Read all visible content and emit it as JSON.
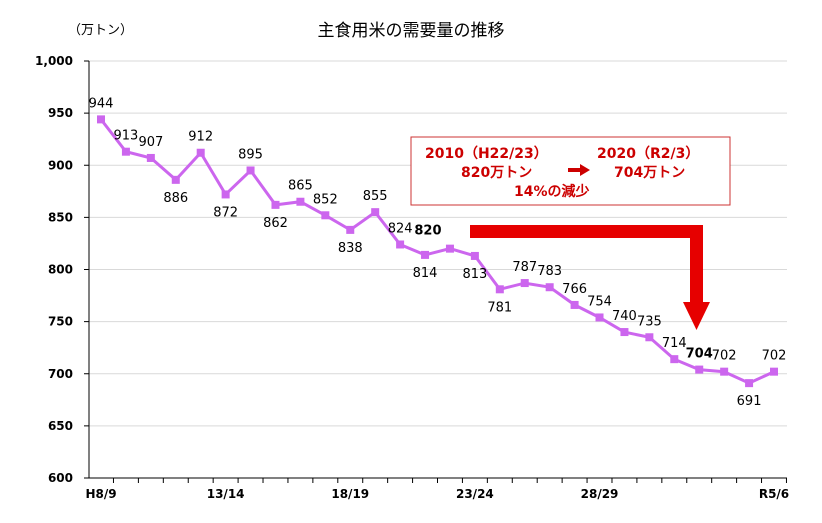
{
  "chart_data": {
    "type": "line",
    "title": "主食用米の需要量の推移",
    "unit_label": "（万トン）",
    "xlabel": "",
    "ylabel": "",
    "ylim": [
      600,
      1000
    ],
    "yticks": [
      "600",
      "650",
      "700",
      "750",
      "800",
      "850",
      "900",
      "950",
      "1,000"
    ],
    "ytick_values": [
      600,
      650,
      700,
      750,
      800,
      850,
      900,
      950,
      1000
    ],
    "xtick_labels": [
      {
        "index": 0,
        "label": "H8/9"
      },
      {
        "index": 5,
        "label": "13/14"
      },
      {
        "index": 10,
        "label": "18/19"
      },
      {
        "index": 15,
        "label": "23/24"
      },
      {
        "index": 20,
        "label": "28/29"
      },
      {
        "index": 27,
        "label": "R5/6"
      }
    ],
    "series": [
      {
        "color": "#cc66ee",
        "values": [
          944,
          913,
          907,
          886,
          912,
          872,
          895,
          862,
          865,
          852,
          838,
          855,
          824,
          814,
          820,
          813,
          781,
          787,
          783,
          766,
          754,
          740,
          735,
          714,
          704,
          702,
          691,
          702
        ],
        "value_labels": [
          "944",
          "913",
          "907",
          "886",
          "912",
          "872",
          "895",
          "862",
          "865",
          "852",
          "838",
          "855",
          "824",
          "814",
          "820",
          "813",
          "781",
          "787",
          "783",
          "766",
          "754",
          "740",
          "735",
          "714",
          "704",
          "702",
          "691",
          "702"
        ]
      }
    ],
    "bold_label_indices": [
      14,
      24
    ],
    "grid": true,
    "legend": "none",
    "annotation": {
      "line1_left": "2010（H22/23）",
      "line1_right": "2020（R2/3）",
      "line2_left": "820万トン",
      "line2_right": "704万トン",
      "line3": "14%の減少",
      "color": "#cc0000"
    }
  }
}
